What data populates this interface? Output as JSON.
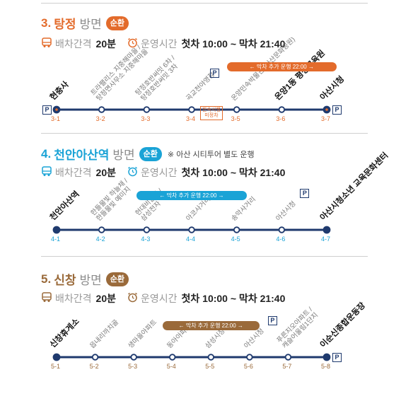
{
  "sections": [
    {
      "id": "s3",
      "number": "3.",
      "name": "탕정",
      "direction": "방면",
      "badge": "순환",
      "note": "",
      "color": "#e36b2b",
      "interval_label": "배차간격",
      "interval_value": "20분",
      "hours_label": "운영시간",
      "hours_value": "첫차 10:00 ~ 막차 21:40",
      "extra_label": "← 막차 추가 운행 22:00 →",
      "stations": [
        {
          "code": "3-1",
          "name": "현충사",
          "bold": true,
          "parking": true
        },
        {
          "code": "3-2",
          "name": "트라팰리스 지중해마을 / 탕정면사무소 지중해마을",
          "bold": false,
          "parking": false
        },
        {
          "code": "3-3",
          "name": "탕정호반써밋 6차 / 탕정호반써밋 3차",
          "bold": false,
          "parking": false
        },
        {
          "code": "3-4",
          "name": "곡교천야영장",
          "bold": false,
          "parking": true
        },
        {
          "code": "3-5",
          "name": "온양민속박물관 (아산문화공원)",
          "bold": false,
          "parking": false
        },
        {
          "code": "3-6",
          "name": "온양1동 평생교육원",
          "bold": true,
          "parking": false
        },
        {
          "code": "3-7",
          "name": "아산시청",
          "bold": true,
          "parking": true
        }
      ],
      "tag_text": "한숙시행 미정차"
    },
    {
      "id": "s4",
      "number": "4.",
      "name": "천안아산역",
      "direction": "방면",
      "badge": "순환",
      "note": "※ 아산 시티투어 별도 운행",
      "color": "#1aa3d6",
      "interval_label": "배차간격",
      "interval_value": "20분",
      "hours_label": "운영시간",
      "hours_value": "첫차 10:00 ~ 막차 21:40",
      "extra_label": "← 막차 추가 운행 22:00 →",
      "stations": [
        {
          "code": "4-1",
          "name": "천안아산역",
          "bold": true,
          "parking": false
        },
        {
          "code": "4-2",
          "name": "한들물빛 하늘채 / 한들물빛 예미지",
          "bold": false,
          "parking": false
        },
        {
          "code": "4-3",
          "name": "현대비발디 / 삼성전자",
          "bold": false,
          "parking": false
        },
        {
          "code": "4-4",
          "name": "아코사거리",
          "bold": false,
          "parking": false
        },
        {
          "code": "4-5",
          "name": "송악사거리",
          "bold": false,
          "parking": false
        },
        {
          "code": "4-6",
          "name": "아산시청",
          "bold": false,
          "parking": true
        },
        {
          "code": "4-7",
          "name": "아산시청소년 교육문화센터",
          "bold": true,
          "parking": false
        }
      ]
    },
    {
      "id": "s5",
      "number": "5.",
      "name": "신창",
      "direction": "방면",
      "badge": "순환",
      "note": "",
      "color": "#9a6a3a",
      "interval_label": "배차간격",
      "interval_value": "20분",
      "hours_label": "운영시간",
      "hours_value": "첫차 10:00 ~ 막차 21:40",
      "extra_label": "← 막차 추가 운행 22:00 →",
      "stations": [
        {
          "code": "5-1",
          "name": "신창휴게소",
          "bold": true,
          "parking": false
        },
        {
          "code": "5-2",
          "name": "읍내리까치골",
          "bold": false,
          "parking": false
        },
        {
          "code": "5-3",
          "name": "생마을아파트",
          "bold": false,
          "parking": false
        },
        {
          "code": "5-4",
          "name": "동아아파트",
          "bold": false,
          "parking": false
        },
        {
          "code": "5-5",
          "name": "삼성시장",
          "bold": false,
          "parking": false
        },
        {
          "code": "5-6",
          "name": "아산시청",
          "bold": false,
          "parking": true
        },
        {
          "code": "5-7",
          "name": "푸른지오아파트 / 캐슬어울림1단지",
          "bold": false,
          "parking": false
        },
        {
          "code": "5-8",
          "name": "이순신종합운동장",
          "bold": true,
          "parking": true
        }
      ]
    }
  ],
  "icons": {
    "bus": "bus-icon",
    "clock": "alarm-clock-icon",
    "parking": "parking-icon"
  },
  "colors": {
    "line": "#1f3a6e"
  }
}
